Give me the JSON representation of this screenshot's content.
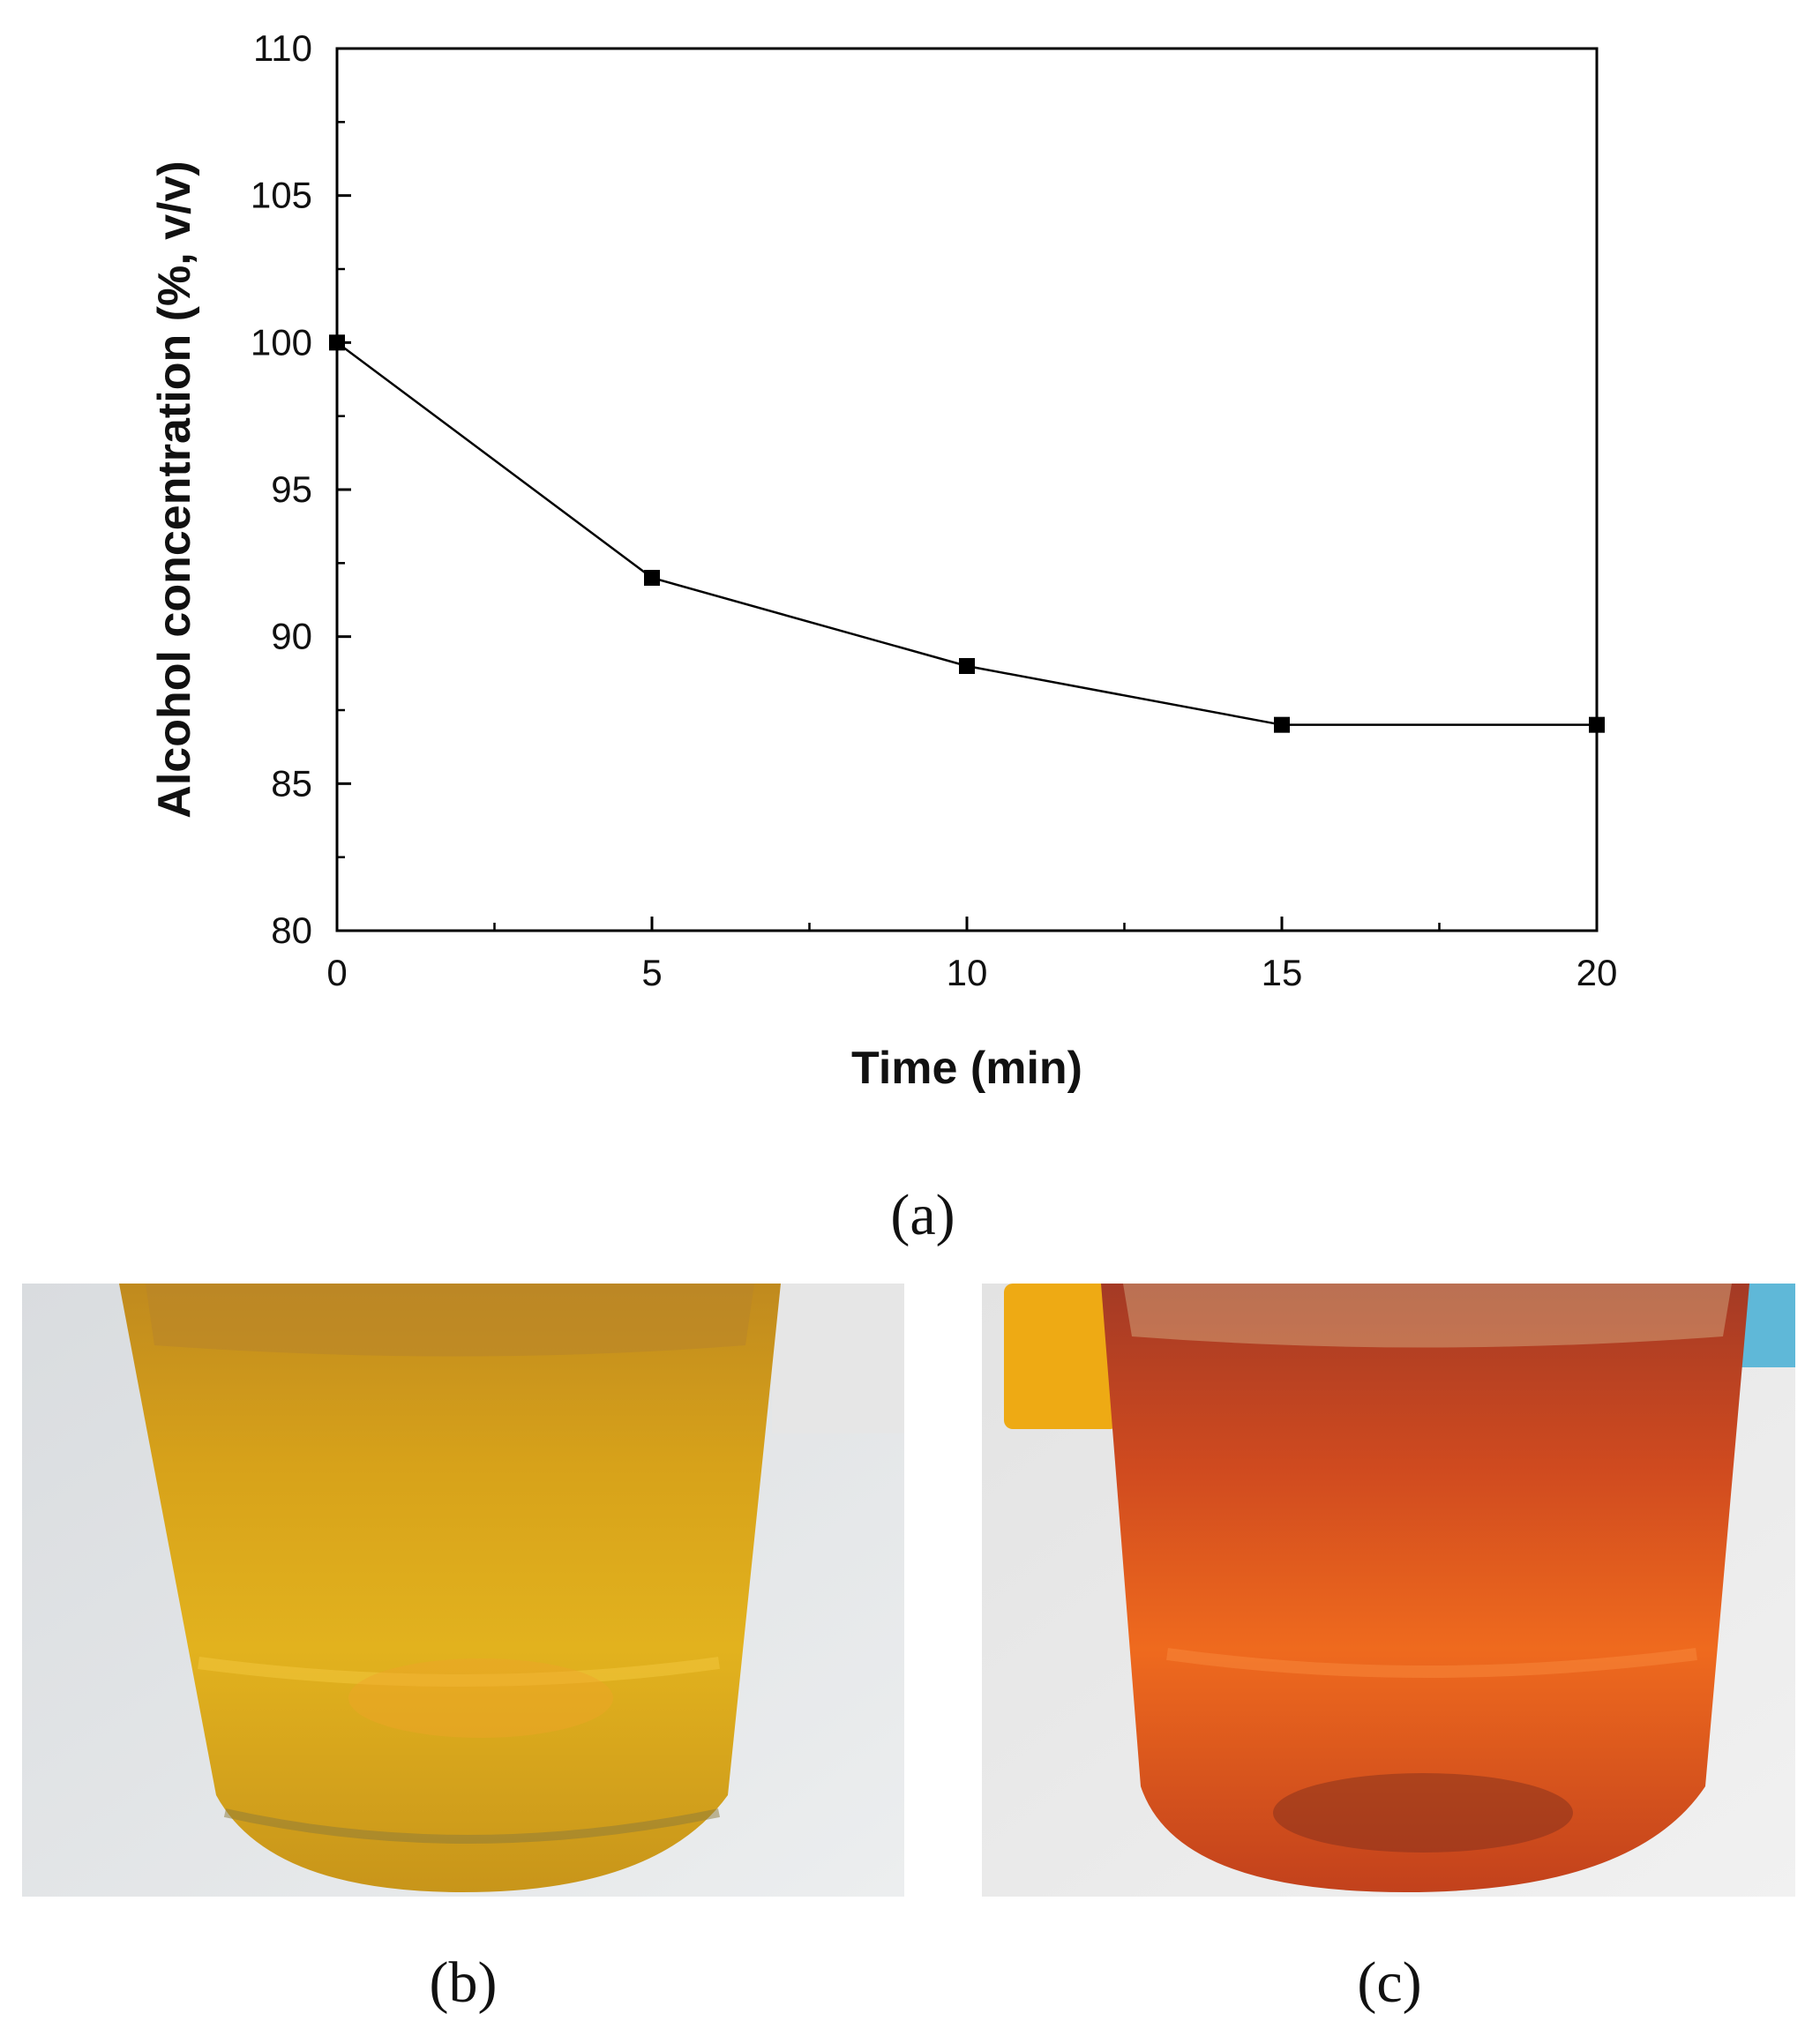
{
  "chart_data": {
    "type": "line",
    "title": "",
    "xlabel": "Time (min)",
    "ylabel": "Alcohol concentration (%, v/v)",
    "xlim": [
      0,
      20
    ],
    "ylim": [
      80,
      110
    ],
    "xticks": [
      0,
      5,
      10,
      15,
      20
    ],
    "yticks": [
      80,
      85,
      90,
      95,
      100,
      105,
      110
    ],
    "grid": false,
    "marker": "square",
    "series": [
      {
        "name": "Alcohol concentration",
        "x": [
          0,
          5,
          10,
          15,
          20
        ],
        "y": [
          100,
          92,
          89,
          87,
          87
        ]
      }
    ]
  },
  "labels": {
    "a": "(a)",
    "b": "(b)",
    "c": "(c)"
  },
  "colors": {
    "line": "#000000",
    "photo_b_liquid": "#d99a12",
    "photo_c_liquid": "#d8551a"
  }
}
